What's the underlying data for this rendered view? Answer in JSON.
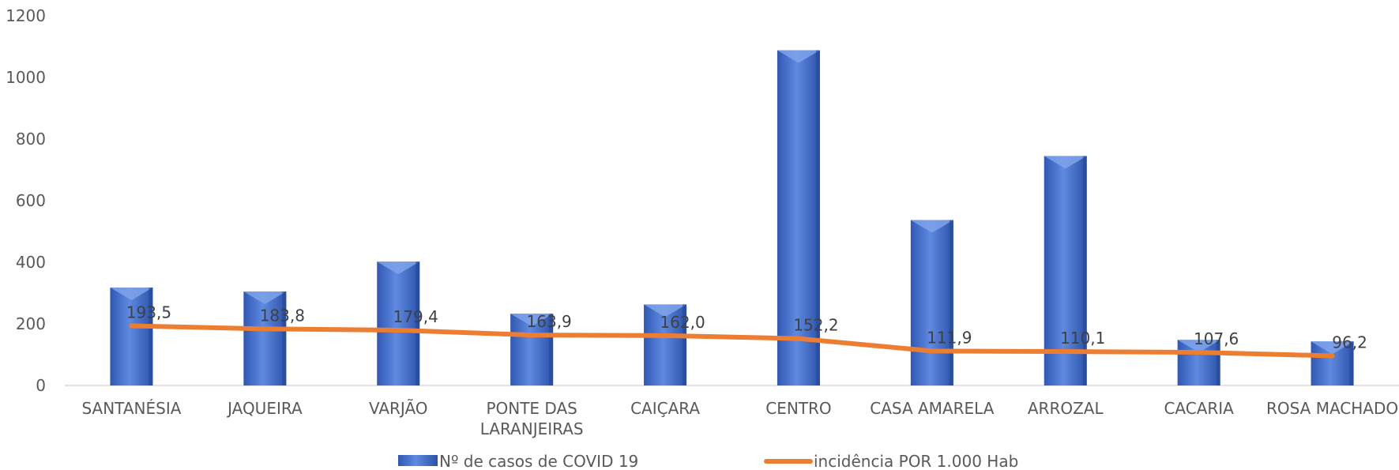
{
  "chart_data": {
    "type": "bar",
    "categories": [
      [
        "SANTANÉSIA"
      ],
      [
        "JAQUEIRA"
      ],
      [
        "VARJÃO"
      ],
      [
        "PONTE DAS",
        "LARANJEIRAS"
      ],
      [
        "CAIÇARA"
      ],
      [
        "CENTRO"
      ],
      [
        "CASA AMARELA"
      ],
      [
        "ARROZAL"
      ],
      [
        "CACARIA"
      ],
      [
        "ROSA MACHADO"
      ]
    ],
    "ylim": [
      0,
      1200
    ],
    "yticks": [
      "0",
      "200",
      "400",
      "600",
      "800",
      "1000",
      "1200"
    ],
    "grid": false,
    "legend_position": "bottom",
    "series": [
      {
        "name": "Nº de casos de COVID 19",
        "type": "bar",
        "color": "#4472C4",
        "values": [
          318,
          305,
          402,
          233,
          263,
          1088,
          537,
          745,
          148,
          143
        ]
      },
      {
        "name": "incidência POR 1.000 Hab",
        "type": "line",
        "color": "#ED7D31",
        "values": [
          193.5,
          183.8,
          179.4,
          163.9,
          162.0,
          152.2,
          111.9,
          110.1,
          107.6,
          96.2
        ],
        "labels": [
          "193,5",
          "183,8",
          "179,4",
          "163,9",
          "162,0",
          "152,2",
          "111,9",
          "110,1",
          "107,6",
          "96,2"
        ]
      }
    ]
  }
}
